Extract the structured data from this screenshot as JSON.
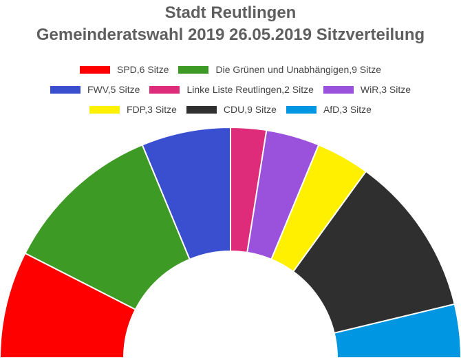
{
  "chart_data": {
    "type": "parliament",
    "title": [
      "Stadt Reutlingen",
      "Gemeinderatswahl 2019 26.05.2019 Sitzverteilung"
    ],
    "unit": "Sitze",
    "series": [
      {
        "name": "SPD",
        "value": 6,
        "color": "#ff0000"
      },
      {
        "name": "Die Grünen und Unabhängigen",
        "value": 9,
        "color": "#3d9a24"
      },
      {
        "name": "FWV",
        "value": 5,
        "color": "#3a4fcf"
      },
      {
        "name": "Linke Liste Reutlingen",
        "value": 2,
        "color": "#de2c7a"
      },
      {
        "name": "WiR",
        "value": 3,
        "color": "#9a52dc"
      },
      {
        "name": "FDP",
        "value": 3,
        "color": "#fff000"
      },
      {
        "name": "CDU",
        "value": 9,
        "color": "#2f2f2f"
      },
      {
        "name": "AfD",
        "value": 3,
        "color": "#0096e1"
      }
    ],
    "legend_labels": [
      "SPD,6 Sitze",
      "Die Grünen und Unabhängigen,9 Sitze",
      "FWV,5 Sitze",
      "Linke Liste Reutlingen,2 Sitze",
      "WiR,3 Sitze",
      "FDP,3 Sitze",
      "CDU,9 Sitze",
      "AfD,3 Sitze"
    ],
    "legend_placement": "top"
  }
}
